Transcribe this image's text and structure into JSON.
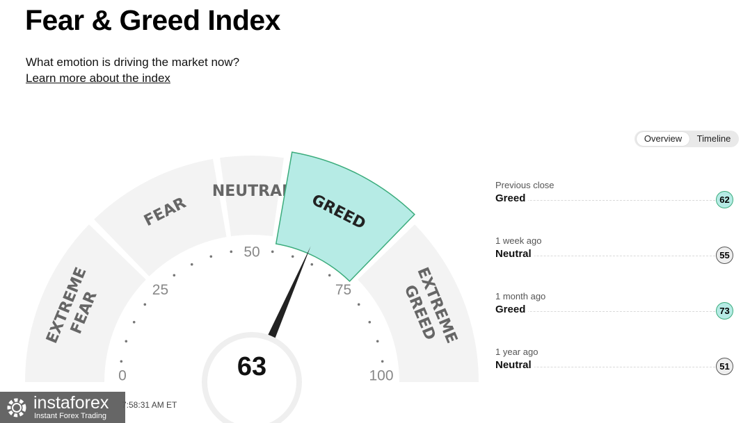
{
  "header": {
    "title": "Fear & Greed Index",
    "subtitle": "What emotion is driving the market now?",
    "learn_link": "Learn more about the index"
  },
  "view_toggle": {
    "options": [
      "Overview",
      "Timeline"
    ],
    "selected": "Overview"
  },
  "gauge": {
    "value": 63,
    "value_text": "63",
    "min": 0,
    "max": 100,
    "active_segment": "GREED",
    "segments": [
      {
        "name": "EXTREME FEAR",
        "lines": [
          "EXTREME",
          "FEAR"
        ],
        "from": 0,
        "to": 25
      },
      {
        "name": "FEAR",
        "lines": [
          "FEAR"
        ],
        "from": 25,
        "to": 45
      },
      {
        "name": "NEUTRAL",
        "lines": [
          "NEUTRAL"
        ],
        "from": 45,
        "to": 55
      },
      {
        "name": "GREED",
        "lines": [
          "GREED"
        ],
        "from": 55,
        "to": 75
      },
      {
        "name": "EXTREME GREED",
        "lines": [
          "EXTREME",
          "GREED"
        ],
        "from": 75,
        "to": 100
      }
    ],
    "scale_labels": [
      "0",
      "25",
      "50",
      "75",
      "100"
    ],
    "colors": {
      "segment": "#f3f3f3",
      "active_fill": "#b6ebe5",
      "active_stroke": "#3bac7c",
      "label": "#666666",
      "needle": "#222222"
    }
  },
  "history": [
    {
      "label": "Previous close",
      "value": "Greed",
      "score": "62",
      "badge_color": "#b6ebe5",
      "badge_border": "#3bac7c"
    },
    {
      "label": "1 week ago",
      "value": "Neutral",
      "score": "55",
      "badge_color": "#eeeeee",
      "badge_border": "#555555"
    },
    {
      "label": "1 month ago",
      "value": "Greed",
      "score": "73",
      "badge_color": "#b6ebe5",
      "badge_border": "#3bac7c"
    },
    {
      "label": "1 year ago",
      "value": "Neutral",
      "score": "51",
      "badge_color": "#eeeeee",
      "badge_border": "#555555"
    }
  ],
  "timestamp": "7:58:31 AM ET",
  "watermark": {
    "logo": "instaforex",
    "sub": "Instant Forex Trading"
  }
}
